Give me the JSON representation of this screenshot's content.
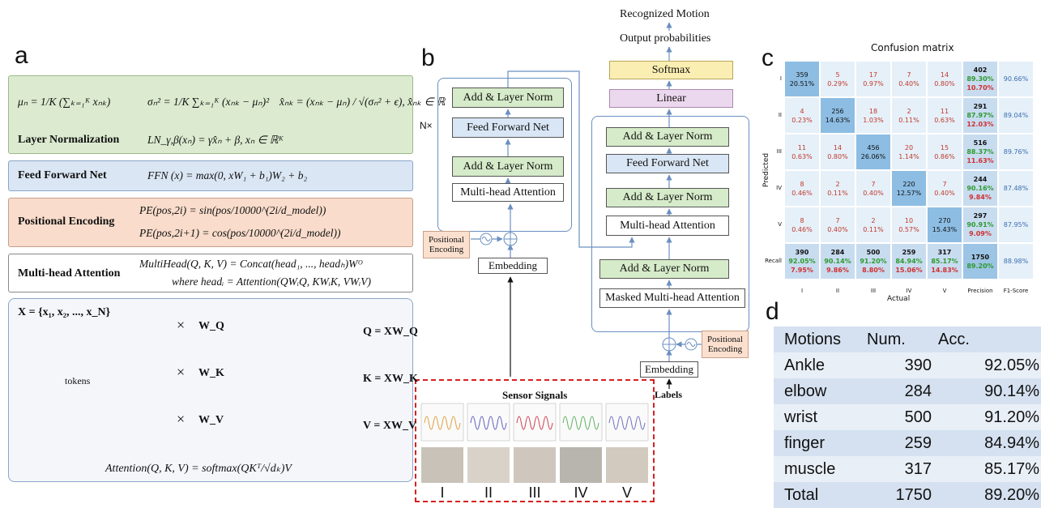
{
  "panels": {
    "a": "a",
    "b": "b",
    "c": "c",
    "d": "d"
  },
  "a": {
    "layer_norm": {
      "mean": "μₙ = 1/K (∑ₖ₌₁ᴷ xₙₖ)",
      "variance": "σₙ² = 1/K ∑ₖ₌₁ᴷ (xₙₖ − μₙ)²",
      "normalized": "x̂ₙₖ = (xₙₖ − μₙ) / √(σₙ² + ϵ), x̂ₙₖ ∈ ℝ",
      "label": "Layer Normalization",
      "formula": "LN_γ,β(xₙ) = γx̂ₙ + β, xₙ ∈ ℝᴷ"
    },
    "ffn": {
      "label": "Feed Forward Net",
      "formula": "FFN (x) = max(0, xW₁ + b₁)W₂ + b₂"
    },
    "pe": {
      "label": "Positional Encoding",
      "formulas": [
        "PE(pos,2i) = sin(pos/10000^(2i/d_model))",
        "PE(pos,2i+1) = cos(pos/10000^(2i/d_model))"
      ]
    },
    "mha": {
      "label": "Multi-head Attention",
      "formulas": [
        "MultiHead(Q, K, V) = Concat(head₁, ..., headₕ)Wᴼ",
        "where headᵢ = Attention(QWᵢQ, KWᵢK, VWᵢV)"
      ]
    },
    "attention": {
      "x": "X = {x₁, x₂, ..., x_N}",
      "tokens": "tokens",
      "times": "×",
      "weights": [
        "W_Q",
        "W_K",
        "W_V"
      ],
      "outputs": [
        "Q = XW_Q",
        "K = XW_K",
        "V = XW_V"
      ],
      "formula": "Attention(Q, K, V) = softmax(QKᵀ/√dₖ)V"
    }
  },
  "b": {
    "top": [
      "Recognized Motion",
      "Output probabilities"
    ],
    "softmax": "Softmax",
    "linear": "Linear",
    "encoder": {
      "repeat": "N×",
      "blocks": [
        "Add & Layer Norm",
        "Feed Forward Net",
        "Add & Layer Norm",
        "Multi-head Attention"
      ],
      "pos_enc": "Positional Encoding",
      "embedding": "Embedding"
    },
    "decoder": {
      "blocks": [
        "Add & Layer Norm",
        "Feed Forward Net",
        "Add & Layer Norm",
        "Multi-head Attention",
        "Add & Layer Norm",
        "Masked Multi-head Attention"
      ],
      "pos_enc": "Positional Encoding",
      "embedding": "Embedding",
      "labels": "Labels"
    },
    "sensor": {
      "title": "Sensor Signals",
      "motions": [
        "I",
        "II",
        "III",
        "IV",
        "V"
      ]
    }
  },
  "c": {
    "title": "Confusion matrix",
    "x_label": "Actual",
    "y_label": "Predicted",
    "col_labels": [
      "I",
      "II",
      "III",
      "IV",
      "V",
      "Precision",
      "F1-Score"
    ],
    "row_labels": [
      "I",
      "II",
      "III",
      "IV",
      "V",
      "Recall"
    ],
    "rows": [
      {
        "cells": [
          [
            359,
            "20.51%"
          ],
          [
            5,
            "0.29%"
          ],
          [
            17,
            "0.97%"
          ],
          [
            7,
            "0.40%"
          ],
          [
            14,
            "0.80%"
          ]
        ],
        "total": [
          402,
          "89.30%",
          "10.70%"
        ],
        "f1": "90.66%"
      },
      {
        "cells": [
          [
            4,
            "0.23%"
          ],
          [
            256,
            "14.63%"
          ],
          [
            18,
            "1.03%"
          ],
          [
            2,
            "0.11%"
          ],
          [
            11,
            "0.63%"
          ]
        ],
        "total": [
          291,
          "87.97%",
          "12.03%"
        ],
        "f1": "89.04%"
      },
      {
        "cells": [
          [
            11,
            "0.63%"
          ],
          [
            14,
            "0.80%"
          ],
          [
            456,
            "26.06%"
          ],
          [
            20,
            "1.14%"
          ],
          [
            15,
            "0.86%"
          ]
        ],
        "total": [
          516,
          "88.37%",
          "11.63%"
        ],
        "f1": "89.76%"
      },
      {
        "cells": [
          [
            8,
            "0.46%"
          ],
          [
            2,
            "0.11%"
          ],
          [
            7,
            "0.40%"
          ],
          [
            220,
            "12.57%"
          ],
          [
            7,
            "0.40%"
          ]
        ],
        "total": [
          244,
          "90.16%",
          "9.84%"
        ],
        "f1": "87.48%"
      },
      {
        "cells": [
          [
            8,
            "0.46%"
          ],
          [
            7,
            "0.40%"
          ],
          [
            2,
            "0.11%"
          ],
          [
            10,
            "0.57%"
          ],
          [
            270,
            "15.43%"
          ]
        ],
        "total": [
          297,
          "90.91%",
          "9.09%"
        ],
        "f1": "87.95%"
      }
    ],
    "recall": {
      "cells": [
        [
          390,
          "92.05%",
          "7.95%"
        ],
        [
          284,
          "90.14%",
          "9.86%"
        ],
        [
          500,
          "91.20%",
          "8.80%"
        ],
        [
          259,
          "84.94%",
          "15.06%"
        ],
        [
          317,
          "85.17%",
          "14.83%"
        ]
      ],
      "total": [
        1750,
        "89.20%"
      ],
      "f1": "88.98%"
    }
  },
  "d": {
    "header": [
      "Motions",
      "Num.",
      "Acc."
    ],
    "rows": [
      [
        "Ankle",
        390,
        "92.05%"
      ],
      [
        "elbow",
        284,
        "90.14%"
      ],
      [
        "wrist",
        500,
        "91.20%"
      ],
      [
        "finger",
        259,
        "84.94%"
      ],
      [
        "muscle",
        317,
        "85.17%"
      ],
      [
        "Total",
        1750,
        "89.20%"
      ]
    ]
  }
}
